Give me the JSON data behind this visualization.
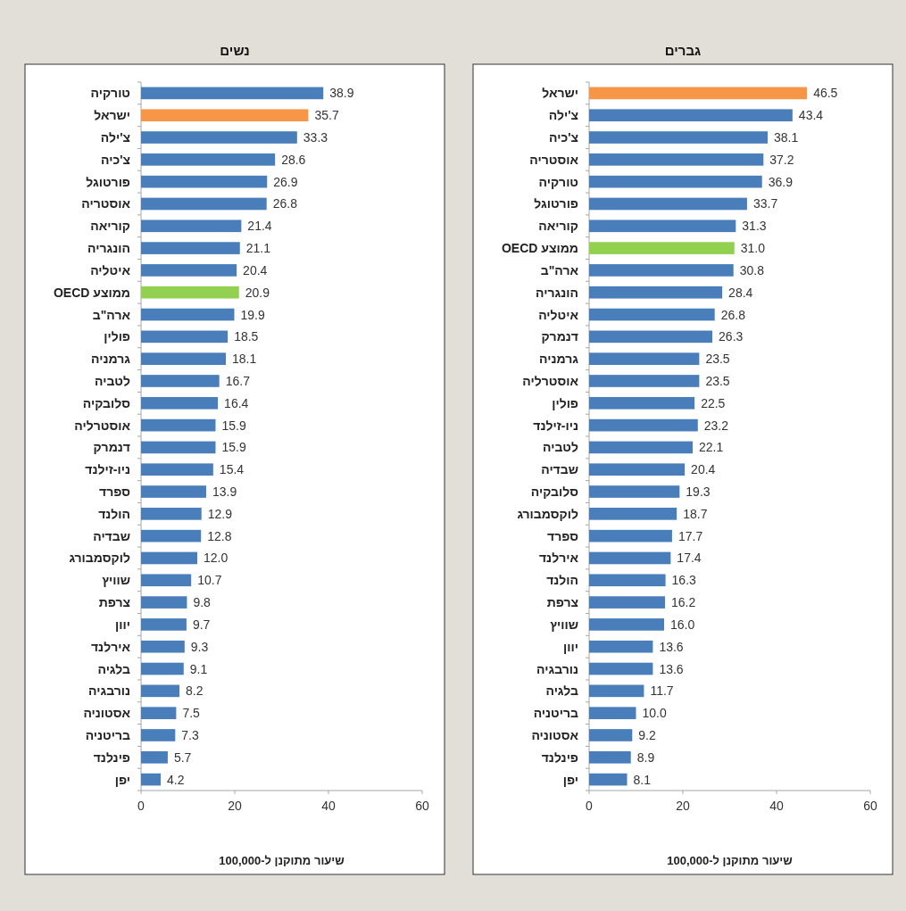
{
  "chart_data": [
    {
      "type": "bar",
      "orientation": "horizontal",
      "title": "נשים",
      "xlabel": "שיעור מתוקנן ל-100,000",
      "categories": [
        "טורקיה",
        "ישראל",
        "צ'ילה",
        "צ'כיה",
        "פורטוגל",
        "אוסטריה",
        "קוריאה",
        "הונגריה",
        "איטליה",
        "ממוצע OECD",
        "ארה\"ב",
        "פולין",
        "גרמניה",
        "לטביה",
        "סלובקיה",
        "אוסטרליה",
        "דנמרק",
        "ניו-זילנד",
        "ספרד",
        "הולנד",
        "שבדיה",
        "לוקסמבורג",
        "שוויץ",
        "צרפת",
        "יוון",
        "אירלנד",
        "בלגיה",
        "נורבגיה",
        "אסטוניה",
        "בריטניה",
        "פינלנד",
        "יפן"
      ],
      "values": [
        38.9,
        35.7,
        33.3,
        28.6,
        26.9,
        26.8,
        21.4,
        21.1,
        20.4,
        20.9,
        19.9,
        18.5,
        18.1,
        16.7,
        16.4,
        15.9,
        15.9,
        15.4,
        13.9,
        12.9,
        12.8,
        12.0,
        10.7,
        9.8,
        9.7,
        9.3,
        9.1,
        8.2,
        7.5,
        7.3,
        5.7,
        4.2
      ],
      "value_labels": [
        "38.9",
        "35.7",
        "33.3",
        "28.6",
        "26.9",
        "26.8",
        "21.4",
        "21.1",
        "20.4",
        "20.9",
        "19.9",
        "18.5",
        "18.1",
        "16.7",
        "16.4",
        "15.9",
        "15.9",
        "15.4",
        "13.9",
        "12.9",
        "12.8",
        "12.0",
        "10.7",
        "9.8",
        "9.7",
        "9.3",
        "9.1",
        "8.2",
        "7.5",
        "7.3",
        "5.7",
        "4.2"
      ],
      "colors": [
        "#4a7ebb",
        "#f79646",
        "#4a7ebb",
        "#4a7ebb",
        "#4a7ebb",
        "#4a7ebb",
        "#4a7ebb",
        "#4a7ebb",
        "#4a7ebb",
        "#92d050",
        "#4a7ebb",
        "#4a7ebb",
        "#4a7ebb",
        "#4a7ebb",
        "#4a7ebb",
        "#4a7ebb",
        "#4a7ebb",
        "#4a7ebb",
        "#4a7ebb",
        "#4a7ebb",
        "#4a7ebb",
        "#4a7ebb",
        "#4a7ebb",
        "#4a7ebb",
        "#4a7ebb",
        "#4a7ebb",
        "#4a7ebb",
        "#4a7ebb",
        "#4a7ebb",
        "#4a7ebb",
        "#4a7ebb",
        "#4a7ebb"
      ],
      "xlim": [
        0,
        60
      ],
      "xticks": [
        0,
        20,
        40,
        60
      ],
      "grid": false
    },
    {
      "type": "bar",
      "orientation": "horizontal",
      "title": "גברים",
      "xlabel": "שיעור מתוקנן ל-100,000",
      "categories": [
        "ישראל",
        "צ'ילה",
        "צ'כיה",
        "אוסטריה",
        "טורקיה",
        "פורטוגל",
        "קוריאה",
        "ממוצע OECD",
        "ארה\"ב",
        "הונגריה",
        "איטליה",
        "דנמרק",
        "גרמניה",
        "אוסטרליה",
        "פולין",
        "ניו-זילנד",
        "לטביה",
        "שבדיה",
        "סלובקיה",
        "לוקסמבורג",
        "ספרד",
        "אירלנד",
        "הולנד",
        "צרפת",
        "שוויץ",
        "יוון",
        "נורבגיה",
        "בלגיה",
        "בריטניה",
        "אסטוניה",
        "פינלנד",
        "יפן"
      ],
      "values": [
        46.5,
        43.4,
        38.1,
        37.2,
        36.9,
        33.7,
        31.3,
        31.0,
        30.8,
        28.4,
        26.8,
        26.3,
        23.5,
        23.5,
        22.5,
        23.2,
        22.1,
        20.4,
        19.3,
        18.7,
        17.7,
        17.4,
        16.3,
        16.2,
        16.0,
        13.6,
        13.6,
        11.7,
        10.0,
        9.2,
        8.9,
        8.1
      ],
      "value_labels": [
        "46.5",
        "43.4",
        "38.1",
        "37.2",
        "36.9",
        "33.7",
        "31.3",
        "31.0",
        "30.8",
        "28.4",
        "26.8",
        "26.3",
        "23.5",
        "23.5",
        "22.5",
        "23.2",
        "22.1",
        "20.4",
        "19.3",
        "18.7",
        "17.7",
        "17.4",
        "16.3",
        "16.2",
        "16.0",
        "13.6",
        "13.6",
        "11.7",
        "10.0",
        "9.2",
        "8.9",
        "8.1"
      ],
      "colors": [
        "#f79646",
        "#4a7ebb",
        "#4a7ebb",
        "#4a7ebb",
        "#4a7ebb",
        "#4a7ebb",
        "#4a7ebb",
        "#92d050",
        "#4a7ebb",
        "#4a7ebb",
        "#4a7ebb",
        "#4a7ebb",
        "#4a7ebb",
        "#4a7ebb",
        "#4a7ebb",
        "#4a7ebb",
        "#4a7ebb",
        "#4a7ebb",
        "#4a7ebb",
        "#4a7ebb",
        "#4a7ebb",
        "#4a7ebb",
        "#4a7ebb",
        "#4a7ebb",
        "#4a7ebb",
        "#4a7ebb",
        "#4a7ebb",
        "#4a7ebb",
        "#4a7ebb",
        "#4a7ebb",
        "#4a7ebb",
        "#4a7ebb"
      ],
      "xlim": [
        0,
        60
      ],
      "xticks": [
        0,
        20,
        40,
        60
      ],
      "grid": false
    }
  ]
}
